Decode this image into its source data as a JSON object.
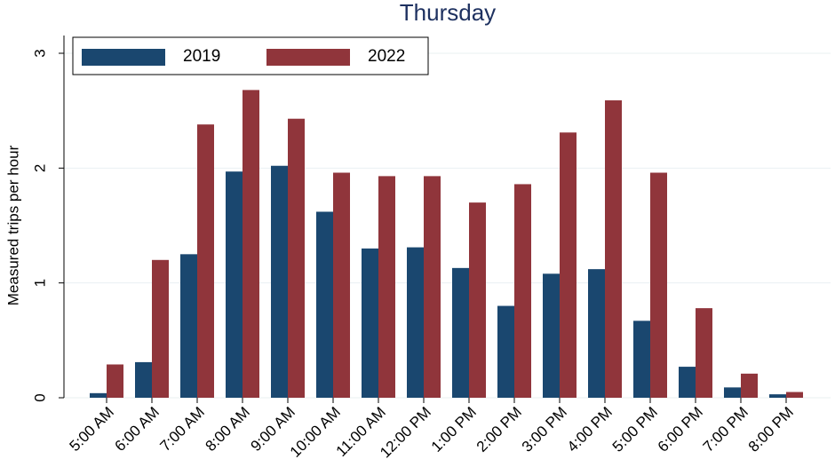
{
  "chart_data": {
    "type": "bar",
    "title": "Thursday",
    "y_label": "Measured trips per hour",
    "categories": [
      "5:00 AM",
      "6:00 AM",
      "7:00 AM",
      "8:00 AM",
      "9:00 AM",
      "10:00 AM",
      "11:00 AM",
      "12:00 PM",
      "1:00 PM",
      "2:00 PM",
      "3:00 PM",
      "4:00 PM",
      "5:00 PM",
      "6:00 PM",
      "7:00 PM",
      "8:00 PM"
    ],
    "series": [
      {
        "name": "2019",
        "color": "#1a476f",
        "values": [
          0.04,
          0.31,
          1.25,
          1.97,
          2.02,
          1.62,
          1.3,
          1.31,
          1.13,
          0.8,
          1.08,
          1.12,
          0.67,
          0.27,
          0.09,
          0.03
        ]
      },
      {
        "name": "2022",
        "color": "#90353b",
        "values": [
          0.29,
          1.2,
          2.38,
          2.68,
          2.43,
          1.96,
          1.93,
          1.93,
          1.7,
          1.86,
          2.31,
          2.59,
          1.96,
          0.78,
          0.21,
          0.05
        ]
      }
    ],
    "ylim": [
      0,
      3
    ],
    "yticks": [
      0,
      1,
      2,
      3
    ],
    "grid": true,
    "legend": "top-left"
  }
}
